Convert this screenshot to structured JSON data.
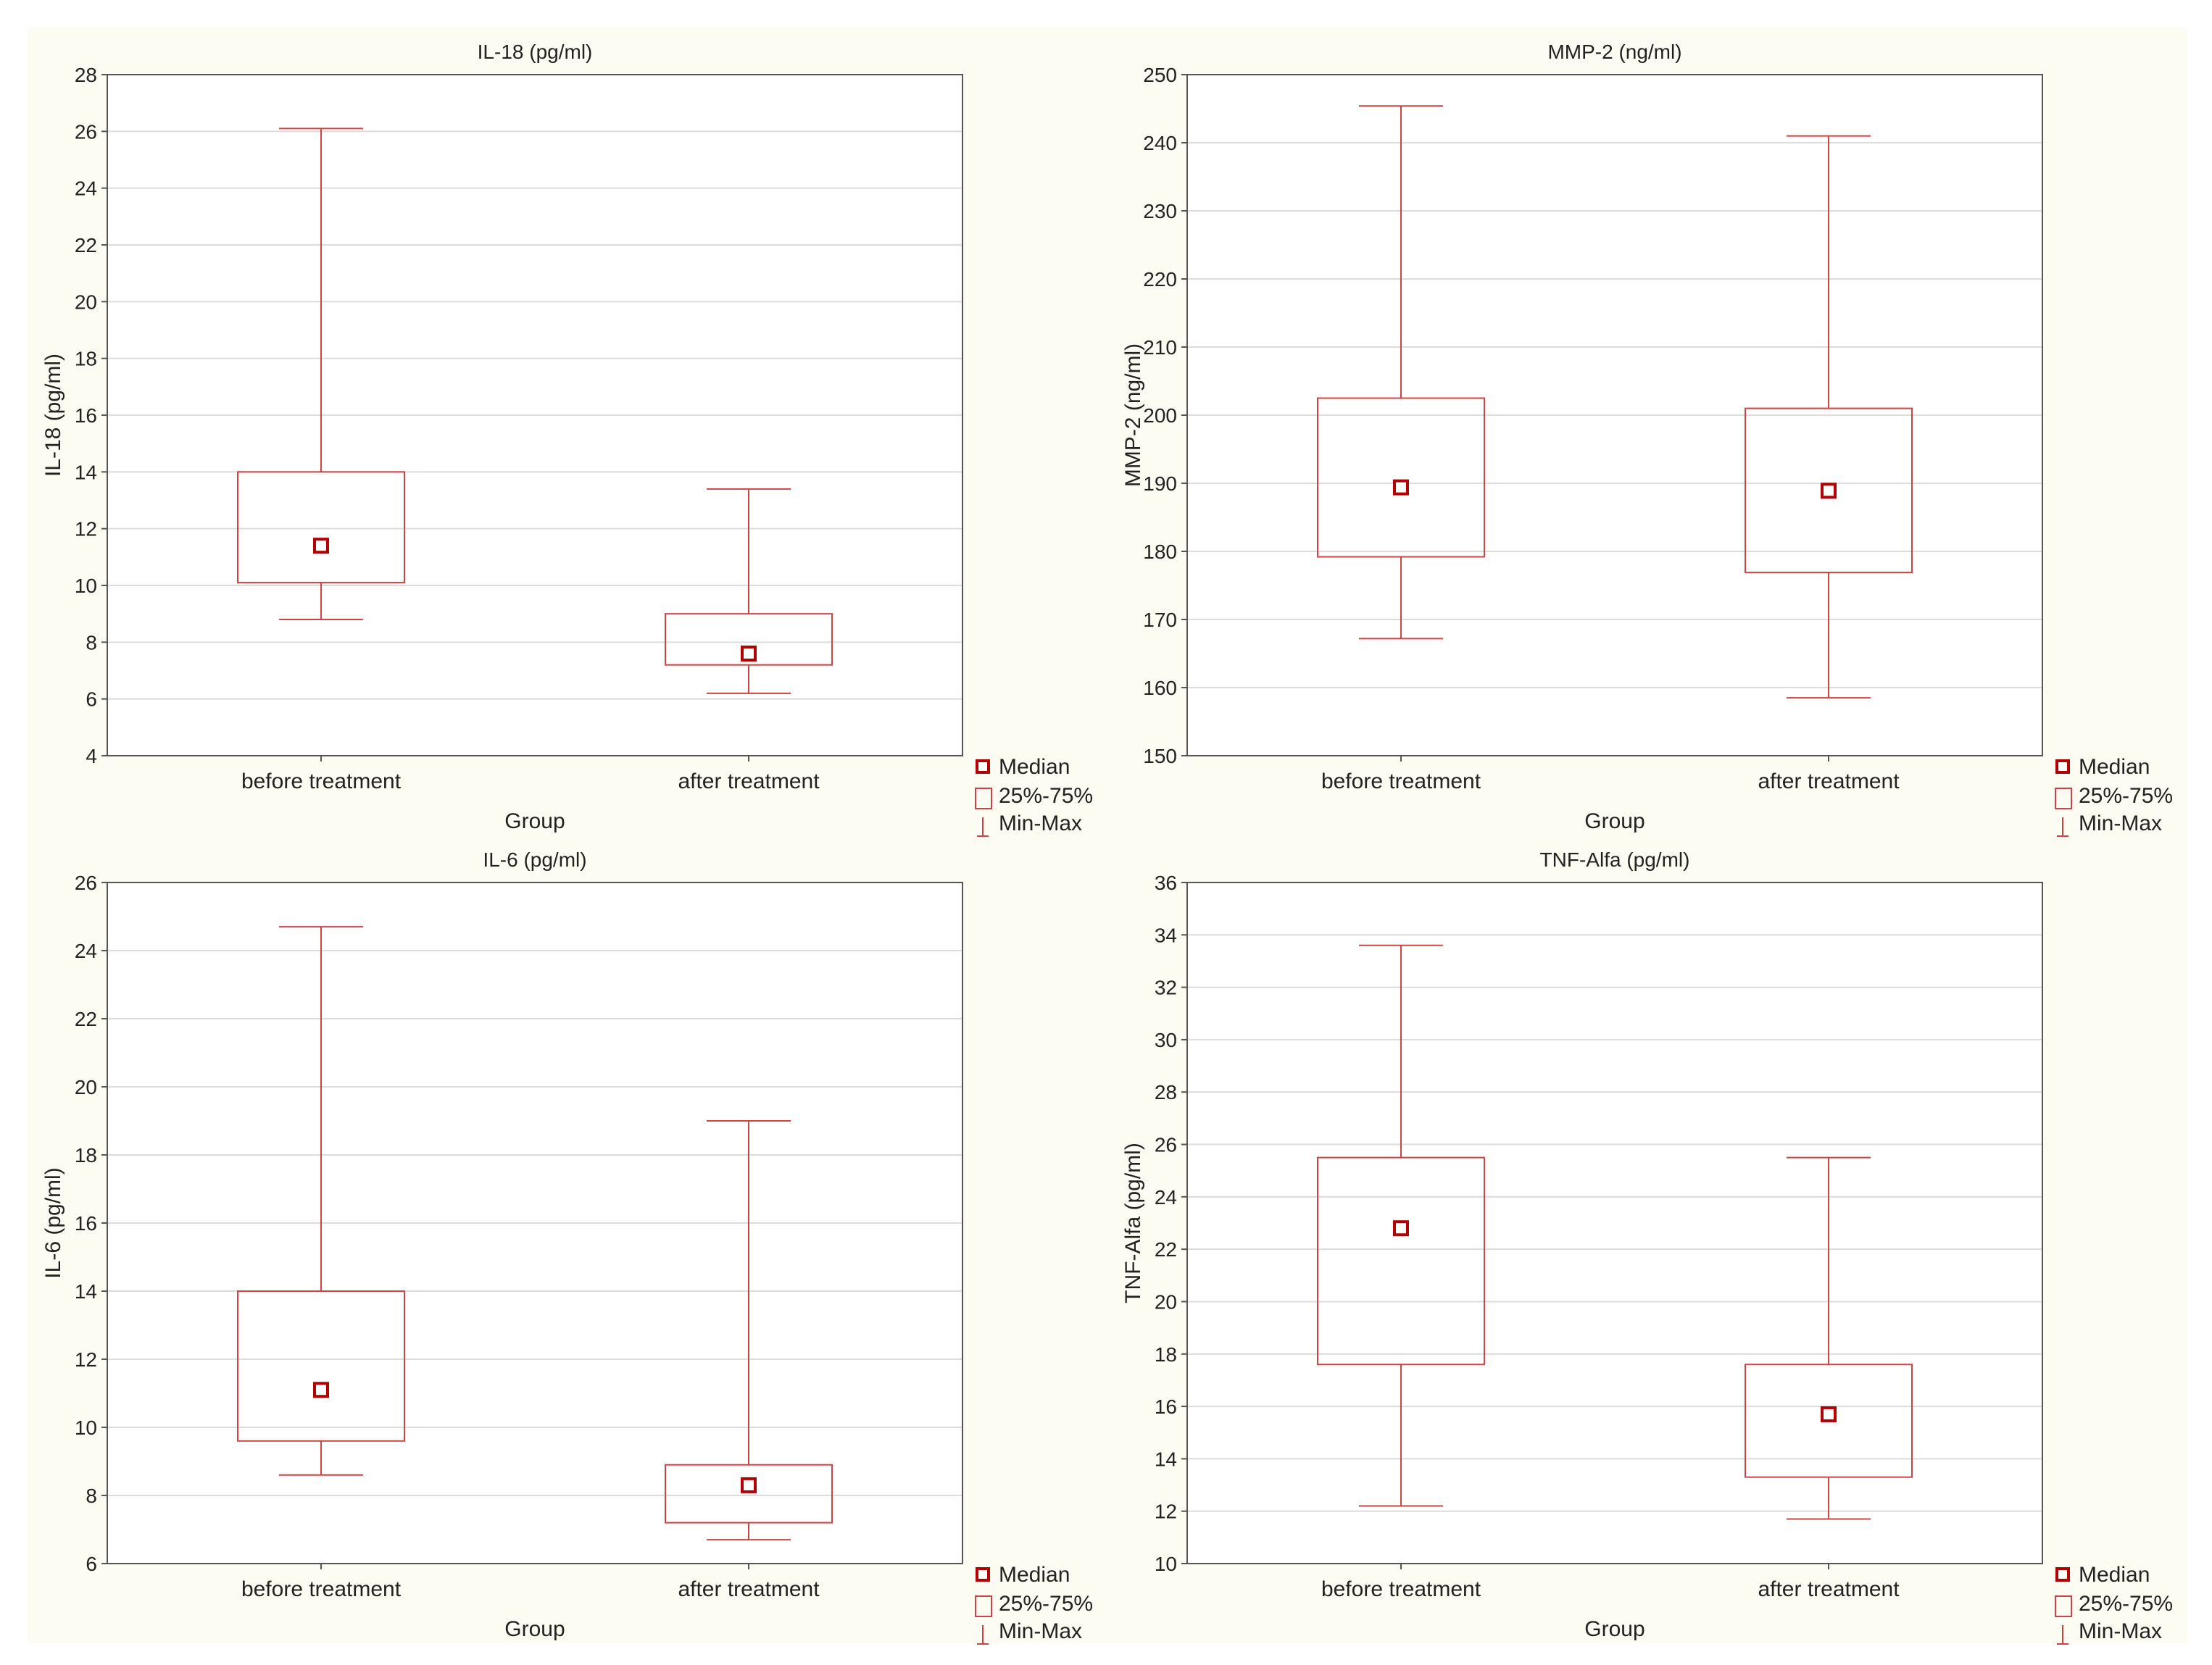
{
  "colors": {
    "box": "#cc4444",
    "median": "#b00000",
    "grid": "#dcdcdc",
    "axis": "#555555",
    "plot_bg": "#ffffff",
    "figure_bg": "#fdfcf3"
  },
  "legend": {
    "median": "Median",
    "iqr": "25%-75%",
    "range": "Min-Max"
  },
  "chart_data": [
    {
      "type": "box",
      "title": "IL-18 (pg/ml)",
      "xlabel": "Group",
      "ylabel": "IL-18 (pg/ml)",
      "ylim": [
        4,
        28
      ],
      "yticks": [
        4,
        6,
        8,
        10,
        12,
        14,
        16,
        18,
        20,
        22,
        24,
        26,
        28
      ],
      "categories": [
        "before treatment",
        "after treatment"
      ],
      "boxes": [
        {
          "min": 8.8,
          "q1": 10.1,
          "median": 11.4,
          "q3": 14.0,
          "max": 26.1
        },
        {
          "min": 6.2,
          "q1": 7.2,
          "median": 7.6,
          "q3": 9.0,
          "max": 13.4
        }
      ]
    },
    {
      "type": "box",
      "title": "MMP-2  (ng/ml)",
      "xlabel": "Group",
      "ylabel": "MMP-2  (ng/ml)",
      "ylim": [
        150,
        250
      ],
      "yticks": [
        150,
        160,
        170,
        180,
        190,
        200,
        210,
        220,
        230,
        240,
        250
      ],
      "categories": [
        "before treatment",
        "after treatment"
      ],
      "boxes": [
        {
          "min": 167.2,
          "q1": 179.2,
          "median": 189.4,
          "q3": 202.5,
          "max": 245.4
        },
        {
          "min": 158.5,
          "q1": 176.9,
          "median": 188.9,
          "q3": 201.0,
          "max": 241.0
        }
      ]
    },
    {
      "type": "box",
      "title": "IL-6 (pg/ml)",
      "xlabel": "Group",
      "ylabel": "IL-6 (pg/ml)",
      "ylim": [
        6,
        26
      ],
      "yticks": [
        6,
        8,
        10,
        12,
        14,
        16,
        18,
        20,
        22,
        24,
        26
      ],
      "categories": [
        "before treatment",
        "after treatment"
      ],
      "boxes": [
        {
          "min": 8.6,
          "q1": 9.6,
          "median": 11.1,
          "q3": 14.0,
          "max": 24.7
        },
        {
          "min": 6.7,
          "q1": 7.2,
          "median": 8.3,
          "q3": 8.9,
          "max": 19.0
        }
      ]
    },
    {
      "type": "box",
      "title": "TNF-Alfa (pg/ml)",
      "xlabel": "Group",
      "ylabel": "TNF-Alfa (pg/ml)",
      "ylim": [
        10,
        36
      ],
      "yticks": [
        10,
        12,
        14,
        16,
        18,
        20,
        22,
        24,
        26,
        28,
        30,
        32,
        34,
        36
      ],
      "categories": [
        "before treatment",
        "after treatment"
      ],
      "boxes": [
        {
          "min": 12.2,
          "q1": 17.6,
          "median": 22.8,
          "q3": 25.5,
          "max": 33.6
        },
        {
          "min": 11.7,
          "q1": 13.3,
          "median": 15.7,
          "q3": 17.6,
          "max": 25.5
        }
      ]
    }
  ]
}
